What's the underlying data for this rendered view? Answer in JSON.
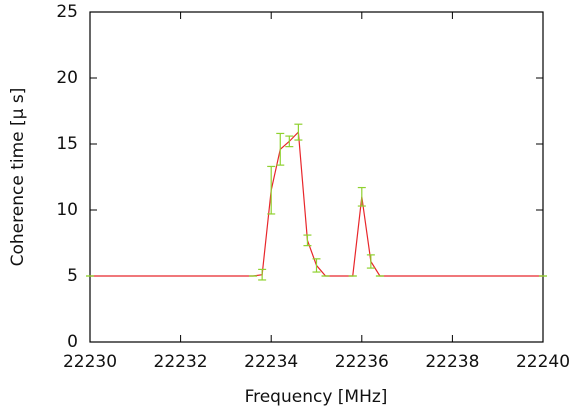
{
  "chart_data": {
    "type": "line",
    "x_label": "Frequency [MHz]",
    "y_label": "Coherence time [μ s]",
    "x": [
      22230,
      22233.6,
      22233.8,
      22234.0,
      22234.2,
      22234.4,
      22234.6,
      22234.8,
      22235.0,
      22235.2,
      22235.8,
      22236.0,
      22236.2,
      22236.4,
      22240
    ],
    "series": [
      {
        "color": "#e8262b",
        "error_color": "#8fd12f",
        "values": [
          5,
          5,
          5.1,
          11.5,
          14.6,
          15.2,
          15.9,
          7.7,
          5.8,
          5,
          5,
          11,
          6.1,
          5,
          5
        ],
        "errors": [
          0,
          0,
          0.4,
          1.8,
          1.2,
          0.4,
          0.6,
          0.4,
          0.5,
          0,
          0,
          0.7,
          0.5,
          0,
          0
        ]
      }
    ],
    "xlim": [
      22230,
      22240
    ],
    "xticks": [
      22230,
      22232,
      22234,
      22236,
      22238,
      22240
    ],
    "ylim": [
      0,
      25
    ],
    "yticks": [
      0,
      5,
      10,
      15,
      20,
      25
    ],
    "grid": false
  }
}
